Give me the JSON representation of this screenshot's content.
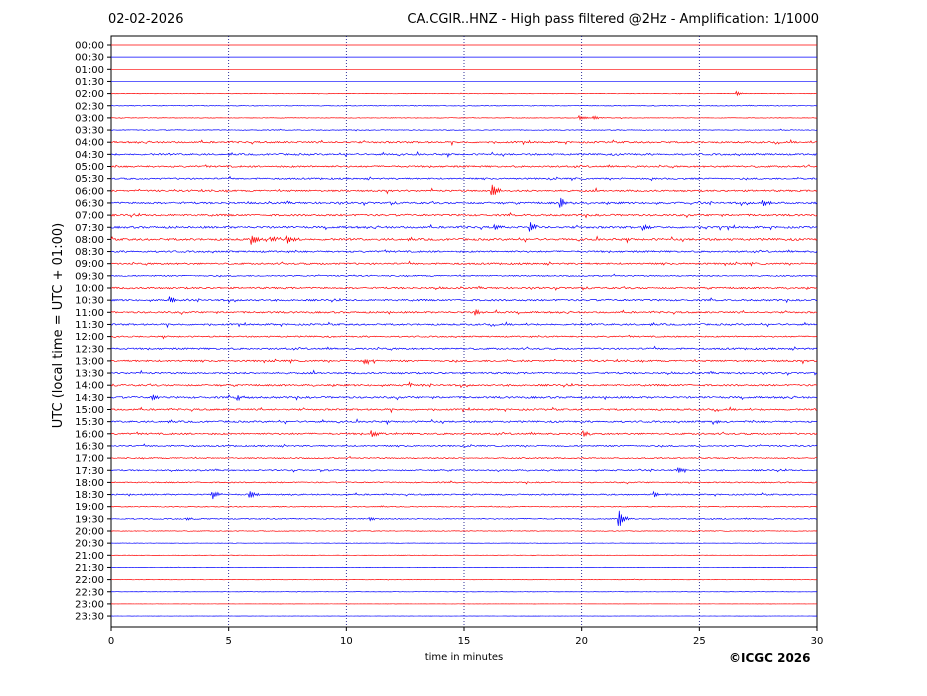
{
  "header": {
    "date": "02-02-2026",
    "title": "CA.CGIR..HNZ - High pass filtered @2Hz - Amplification: 1/1000"
  },
  "footer": {
    "copyright": "©ICGC 2026"
  },
  "colors": {
    "odd": "#ff0000",
    "even": "#0000ff",
    "grid": "#000080",
    "frame": "#000000"
  },
  "chart_data": {
    "type": "line",
    "title": "CA.CGIR..HNZ - High pass filtered @2Hz - Amplification: 1/1000",
    "xlabel": "time in minutes",
    "ylabel": "UTC (local time = UTC + 01:00)",
    "xlim": [
      0,
      30
    ],
    "xticks": [
      0,
      5,
      10,
      15,
      20,
      25,
      30
    ],
    "grid": "vertical dotted lines at 5, 10, 15, 20, 25",
    "rows": [
      "00:00",
      "00:30",
      "01:00",
      "01:30",
      "02:00",
      "02:30",
      "03:00",
      "03:30",
      "04:00",
      "04:30",
      "05:00",
      "05:30",
      "06:00",
      "06:30",
      "07:00",
      "07:30",
      "08:00",
      "08:30",
      "09:00",
      "09:30",
      "10:00",
      "10:30",
      "11:00",
      "11:30",
      "12:00",
      "12:30",
      "13:00",
      "13:30",
      "14:00",
      "14:30",
      "15:00",
      "15:30",
      "16:00",
      "16:30",
      "17:00",
      "17:30",
      "18:00",
      "18:30",
      "19:00",
      "19:30",
      "20:00",
      "20:30",
      "21:00",
      "21:30",
      "22:00",
      "22:30",
      "23:00",
      "23:30"
    ],
    "row_colors": [
      "red",
      "blue"
    ],
    "noise_level": [
      0,
      0,
      0,
      0,
      0.3,
      0.4,
      0.3,
      0.4,
      1,
      1,
      1,
      0.9,
      1,
      1.1,
      1.1,
      1.2,
      1.2,
      1,
      1,
      0.7,
      1,
      1,
      1,
      1,
      0.8,
      1,
      1,
      1,
      1,
      1.1,
      1,
      1,
      1,
      0.8,
      0.7,
      0.8,
      0.7,
      0.8,
      0.5,
      0.6,
      0.4,
      0.2,
      0.2,
      0.2,
      0.3,
      0.2,
      0.1,
      0.1
    ],
    "events": [
      {
        "row": "02:00",
        "t": 26.6,
        "amp": 2
      },
      {
        "row": "03:00",
        "t": 19.9,
        "amp": 3
      },
      {
        "row": "03:00",
        "t": 20.5,
        "amp": 2
      },
      {
        "row": "06:00",
        "t": 16.2,
        "amp": 7
      },
      {
        "row": "06:30",
        "t": 19.1,
        "amp": 6
      },
      {
        "row": "06:30",
        "t": 27.7,
        "amp": 4
      },
      {
        "row": "07:30",
        "t": 17.8,
        "amp": 6
      },
      {
        "row": "07:30",
        "t": 16.3,
        "amp": 3
      },
      {
        "row": "07:30",
        "t": 22.6,
        "amp": 3
      },
      {
        "row": "08:00",
        "t": 6.0,
        "amp": 5
      },
      {
        "row": "08:00",
        "t": 7.5,
        "amp": 5
      },
      {
        "row": "08:00",
        "t": 6.8,
        "amp": 3
      },
      {
        "row": "10:30",
        "t": 2.5,
        "amp": 5
      },
      {
        "row": "11:00",
        "t": 15.5,
        "amp": 3
      },
      {
        "row": "13:00",
        "t": 10.8,
        "amp": 3
      },
      {
        "row": "14:00",
        "t": 12.7,
        "amp": 3
      },
      {
        "row": "14:30",
        "t": 5.4,
        "amp": 3
      },
      {
        "row": "14:30",
        "t": 1.8,
        "amp": 3
      },
      {
        "row": "15:30",
        "t": 25.6,
        "amp": 3
      },
      {
        "row": "16:00",
        "t": 11.1,
        "amp": 3
      },
      {
        "row": "16:00",
        "t": 20.1,
        "amp": 3
      },
      {
        "row": "17:30",
        "t": 24.1,
        "amp": 3
      },
      {
        "row": "18:30",
        "t": 4.3,
        "amp": 5
      },
      {
        "row": "18:30",
        "t": 5.9,
        "amp": 4
      },
      {
        "row": "18:30",
        "t": 23.1,
        "amp": 3
      },
      {
        "row": "19:30",
        "t": 21.6,
        "amp": 9
      },
      {
        "row": "19:30",
        "t": 3.2,
        "amp": 2
      },
      {
        "row": "19:30",
        "t": 11.0,
        "amp": 2
      }
    ]
  }
}
